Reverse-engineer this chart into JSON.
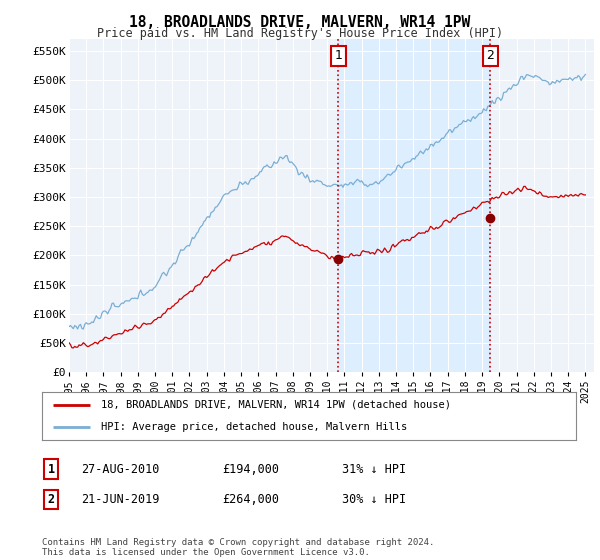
{
  "title": "18, BROADLANDS DRIVE, MALVERN, WR14 1PW",
  "subtitle": "Price paid vs. HM Land Registry's House Price Index (HPI)",
  "ylabel_ticks": [
    "£0",
    "£50K",
    "£100K",
    "£150K",
    "£200K",
    "£250K",
    "£300K",
    "£350K",
    "£400K",
    "£450K",
    "£500K",
    "£550K"
  ],
  "ytick_values": [
    0,
    50000,
    100000,
    150000,
    200000,
    250000,
    300000,
    350000,
    400000,
    450000,
    500000,
    550000
  ],
  "ylim": [
    0,
    570000
  ],
  "xlim_start": 1995.0,
  "xlim_end": 2025.5,
  "hpi_color": "#7aaed4",
  "price_color": "#cc0000",
  "vline_color": "#cc0000",
  "highlight_color": "#ddeeff",
  "plot_bg_color": "#eef3fa",
  "marker1_year": 2010.65,
  "marker1_price": 194000,
  "marker2_year": 2019.47,
  "marker2_price": 264000,
  "legend_line1": "18, BROADLANDS DRIVE, MALVERN, WR14 1PW (detached house)",
  "legend_line2": "HPI: Average price, detached house, Malvern Hills",
  "table_row1": [
    "1",
    "27-AUG-2010",
    "£194,000",
    "31% ↓ HPI"
  ],
  "table_row2": [
    "2",
    "21-JUN-2019",
    "£264,000",
    "30% ↓ HPI"
  ],
  "footer": "Contains HM Land Registry data © Crown copyright and database right 2024.\nThis data is licensed under the Open Government Licence v3.0.",
  "xtick_years": [
    1995,
    1996,
    1997,
    1998,
    1999,
    2000,
    2001,
    2002,
    2003,
    2004,
    2005,
    2006,
    2007,
    2008,
    2009,
    2010,
    2011,
    2012,
    2013,
    2014,
    2015,
    2016,
    2017,
    2018,
    2019,
    2020,
    2021,
    2022,
    2023,
    2024,
    2025
  ]
}
